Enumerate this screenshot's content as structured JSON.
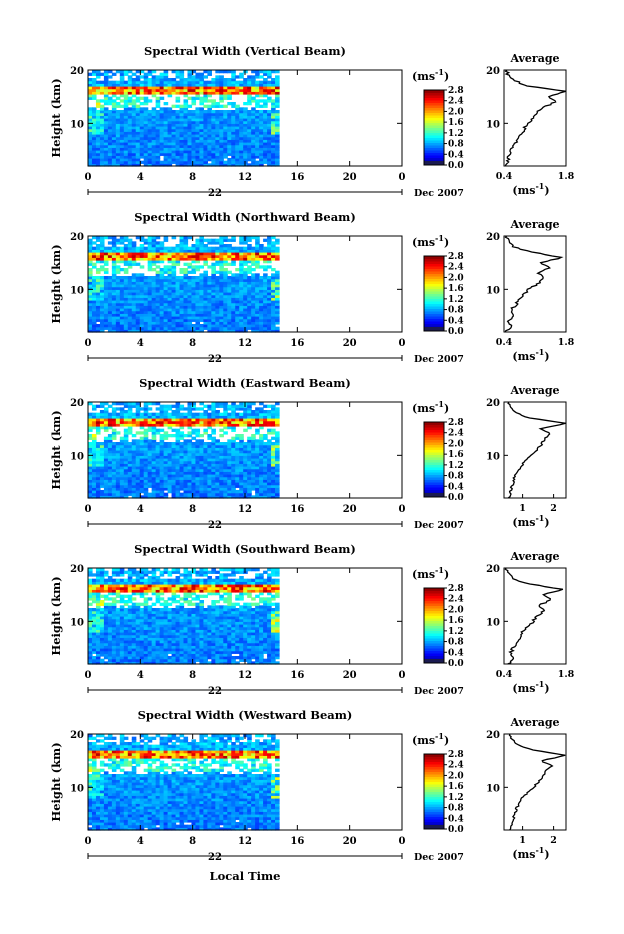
{
  "figure": {
    "xlabel": "Local Time",
    "date_text": "Dec 2007",
    "colorbar_unit": "(ms",
    "colorbar_exp": "-1",
    "average_title": "Average"
  },
  "chart_data": [
    {
      "type": "heatmap",
      "title": "Spectral Width (Vertical Beam)",
      "ylabel": "Height (km)",
      "xlim": [
        0,
        24
      ],
      "ylim": [
        2,
        20
      ],
      "xticks": [
        "0",
        "4",
        "8",
        "12",
        "16",
        "20",
        "0"
      ],
      "yticks": [
        "10",
        "20"
      ],
      "day_label": "22",
      "data_end_hour": 14.6,
      "colorbar": {
        "min": 0.0,
        "max": 2.8,
        "ticks": [
          "0.0",
          "0.4",
          "0.8",
          "1.2",
          "1.6",
          "2.0",
          "2.4",
          "2.8"
        ]
      },
      "profile": {
        "title": "Average",
        "xlim": [
          0.4,
          1.8
        ],
        "xticks": [
          "0.4",
          "1.8"
        ],
        "heights": [
          2,
          3,
          4,
          5,
          6,
          7,
          8,
          9,
          10,
          11,
          12,
          13,
          14,
          15,
          16,
          17,
          18,
          19,
          20
        ],
        "values": [
          0.45,
          0.5,
          0.52,
          0.55,
          0.65,
          0.7,
          0.8,
          0.85,
          0.95,
          1.05,
          1.15,
          1.3,
          1.55,
          1.4,
          1.8,
          0.9,
          0.65,
          0.5,
          0.45
        ]
      }
    },
    {
      "type": "heatmap",
      "title": "Spectral Width (Northward Beam)",
      "ylabel": "Height (km)",
      "xlim": [
        0,
        24
      ],
      "ylim": [
        2,
        20
      ],
      "xticks": [
        "0",
        "4",
        "8",
        "12",
        "16",
        "20",
        "0"
      ],
      "yticks": [
        "10",
        "20"
      ],
      "day_label": "22",
      "data_end_hour": 14.6,
      "colorbar": {
        "min": 0.0,
        "max": 2.8,
        "ticks": [
          "0.0",
          "0.4",
          "0.8",
          "1.2",
          "1.6",
          "2.0",
          "2.4",
          "2.8"
        ]
      },
      "profile": {
        "title": "Average",
        "xlim": [
          0.4,
          1.8
        ],
        "xticks": [
          "0.4",
          "1.8"
        ],
        "heights": [
          2,
          3,
          4,
          5,
          6,
          7,
          8,
          9,
          10,
          11,
          12,
          13,
          14,
          15,
          16,
          17,
          18,
          19,
          20
        ],
        "values": [
          0.45,
          0.55,
          0.5,
          0.6,
          0.55,
          0.65,
          0.75,
          0.85,
          0.95,
          1.15,
          1.3,
          1.2,
          1.4,
          1.25,
          1.7,
          1.0,
          0.6,
          0.5,
          0.45
        ]
      }
    },
    {
      "type": "heatmap",
      "title": "Spectral Width (Eastward Beam)",
      "ylabel": "Height (km)",
      "xlim": [
        0,
        24
      ],
      "ylim": [
        2,
        20
      ],
      "xticks": [
        "0",
        "4",
        "8",
        "12",
        "16",
        "20",
        "0"
      ],
      "yticks": [
        "10",
        "20"
      ],
      "day_label": "22",
      "data_end_hour": 14.6,
      "colorbar": {
        "min": 0.0,
        "max": 2.8,
        "ticks": [
          "0.0",
          "0.4",
          "0.8",
          "1.2",
          "1.6",
          "2.0",
          "2.4",
          "2.8"
        ]
      },
      "profile": {
        "title": "Average",
        "xlim": [
          0.4,
          2.4
        ],
        "xticks": [
          "1",
          "2"
        ],
        "heights": [
          2,
          3,
          4,
          5,
          6,
          7,
          8,
          9,
          10,
          11,
          12,
          13,
          14,
          15,
          16,
          17,
          18,
          19,
          20
        ],
        "values": [
          0.55,
          0.6,
          0.65,
          0.7,
          0.75,
          0.85,
          0.95,
          1.1,
          1.3,
          1.45,
          1.6,
          1.7,
          1.9,
          1.55,
          2.4,
          1.2,
          0.8,
          0.6,
          0.55
        ]
      }
    },
    {
      "type": "heatmap",
      "title": "Spectral Width (Southward Beam)",
      "ylabel": "Height (km)",
      "xlim": [
        0,
        24
      ],
      "ylim": [
        2,
        20
      ],
      "xticks": [
        "0",
        "4",
        "8",
        "12",
        "16",
        "20",
        "0"
      ],
      "yticks": [
        "10",
        "20"
      ],
      "day_label": "22",
      "data_end_hour": 14.6,
      "colorbar": {
        "min": 0.0,
        "max": 2.8,
        "ticks": [
          "0.0",
          "0.4",
          "0.8",
          "1.2",
          "1.6",
          "2.0",
          "2.4",
          "2.8"
        ]
      },
      "profile": {
        "title": "Average",
        "xlim": [
          0.4,
          1.8
        ],
        "xticks": [
          "0.4",
          "1.8"
        ],
        "heights": [
          2,
          3,
          4,
          5,
          6,
          7,
          8,
          9,
          10,
          11,
          12,
          13,
          14,
          15,
          16,
          17,
          18,
          19,
          20
        ],
        "values": [
          0.5,
          0.65,
          0.55,
          0.6,
          0.7,
          0.75,
          0.8,
          0.95,
          1.05,
          1.15,
          1.3,
          1.2,
          1.45,
          1.3,
          1.75,
          0.95,
          0.6,
          0.5,
          0.45
        ]
      }
    },
    {
      "type": "heatmap",
      "title": "Spectral Width (Westward Beam)",
      "ylabel": "Height (km)",
      "xlim": [
        0,
        24
      ],
      "ylim": [
        2,
        20
      ],
      "xticks": [
        "0",
        "4",
        "8",
        "12",
        "16",
        "20",
        "0"
      ],
      "yticks": [
        "10",
        "20"
      ],
      "day_label": "22",
      "data_end_hour": 14.6,
      "colorbar": {
        "min": 0.0,
        "max": 2.8,
        "ticks": [
          "0.0",
          "0.4",
          "0.8",
          "1.2",
          "1.6",
          "2.0",
          "2.4",
          "2.8"
        ]
      },
      "profile": {
        "title": "Average",
        "xlim": [
          0.4,
          2.4
        ],
        "xticks": [
          "1",
          "2"
        ],
        "heights": [
          2,
          3,
          4,
          5,
          6,
          7,
          8,
          9,
          10,
          11,
          12,
          13,
          14,
          15,
          16,
          17,
          18,
          19,
          20
        ],
        "values": [
          0.6,
          0.65,
          0.7,
          0.75,
          0.8,
          0.9,
          1.0,
          1.15,
          1.35,
          1.5,
          1.65,
          1.75,
          1.95,
          1.6,
          2.4,
          1.3,
          0.85,
          0.65,
          0.6
        ]
      }
    }
  ]
}
